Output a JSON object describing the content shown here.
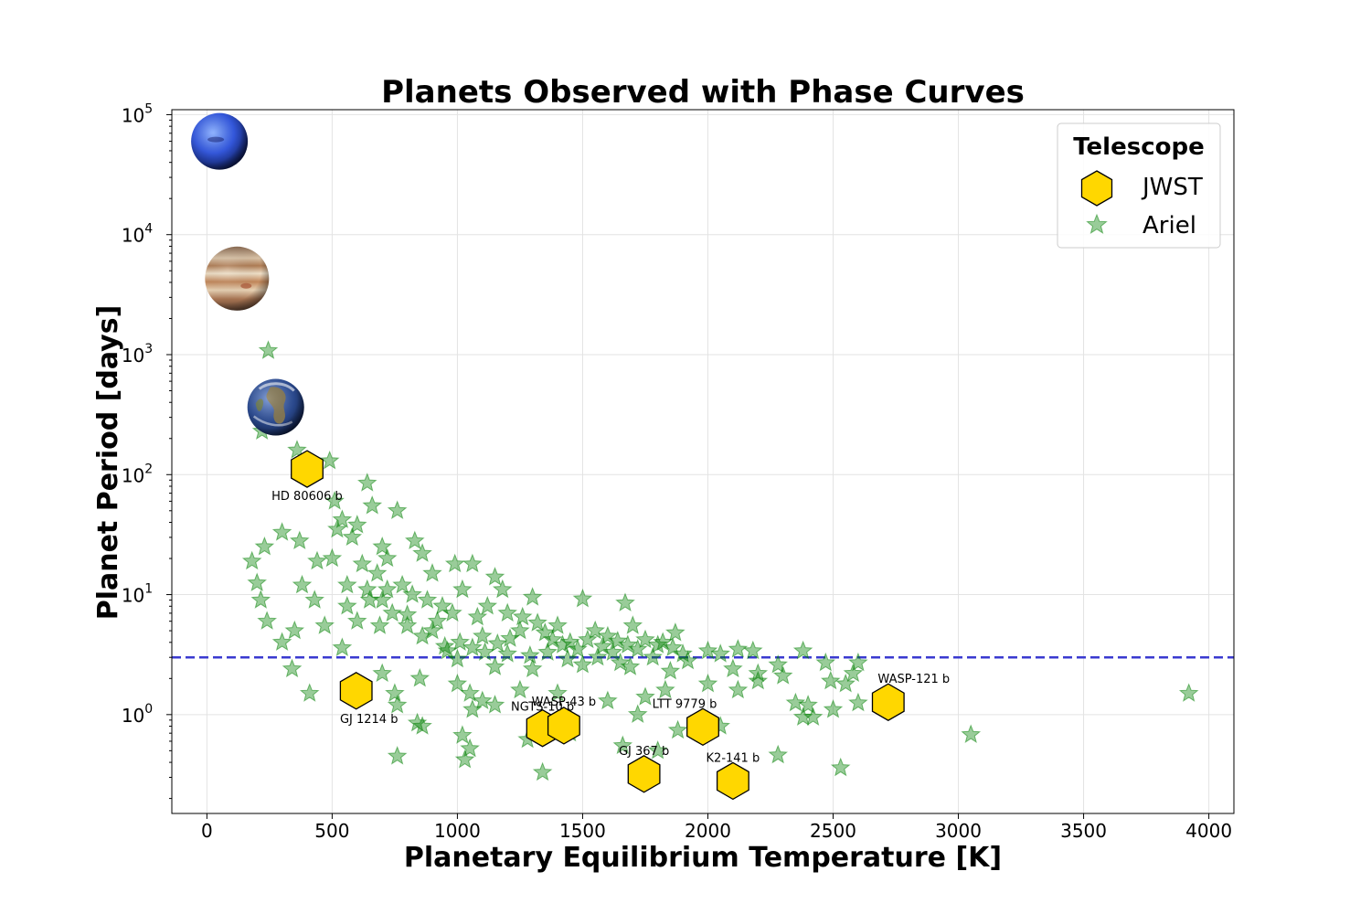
{
  "chart_data": {
    "type": "scatter",
    "title": "Planets Observed with Phase Curves",
    "xlabel": "Planetary Equilibrium Temperature [K]",
    "ylabel": "Planet Period [days]",
    "xlim": [
      -140,
      4100
    ],
    "ylim": [
      0.15,
      110000
    ],
    "yscale": "log",
    "grid": true,
    "x_ticks": [
      0,
      500,
      1000,
      1500,
      2000,
      2500,
      3000,
      3500,
      4000
    ],
    "y_ticks": [
      {
        "value": 1,
        "base": "10",
        "exp": "0"
      },
      {
        "value": 10,
        "base": "10",
        "exp": "1"
      },
      {
        "value": 100,
        "base": "10",
        "exp": "2"
      },
      {
        "value": 1000,
        "base": "10",
        "exp": "3"
      },
      {
        "value": 10000,
        "base": "10",
        "exp": "4"
      },
      {
        "value": 100000,
        "base": "10",
        "exp": "5"
      }
    ],
    "hline": {
      "y": 3.0,
      "color": "#3a3ad0",
      "style": "dashed"
    },
    "legend": {
      "title": "Telescope",
      "position": "top-right"
    },
    "series": [
      {
        "name": "JWST",
        "marker": "hexagon",
        "color": "#FFD700",
        "edge_color": "#000000",
        "points": [
          {
            "label": "HD 80606 b",
            "x": 400,
            "y": 111.4
          },
          {
            "label": "GJ 1214 b",
            "x": 596,
            "y": 1.58
          },
          {
            "label": "NGTS-10 b",
            "x": 1340,
            "y": 0.77
          },
          {
            "label": "WASP-43 b",
            "x": 1425,
            "y": 0.81
          },
          {
            "label": "GJ 367 b",
            "x": 1745,
            "y": 0.32
          },
          {
            "label": "LTT 9779 b",
            "x": 1980,
            "y": 0.79
          },
          {
            "label": "K2-141 b",
            "x": 2100,
            "y": 0.28
          },
          {
            "label": "WASP-121 b",
            "x": 2720,
            "y": 1.27
          }
        ]
      },
      {
        "name": "Ariel",
        "marker": "star",
        "color": "#008000",
        "alpha": 0.4,
        "points": [
          {
            "x": 245,
            "y": 1080
          },
          {
            "x": 220,
            "y": 230
          },
          {
            "x": 360,
            "y": 160
          },
          {
            "x": 490,
            "y": 130
          },
          {
            "x": 640,
            "y": 85
          },
          {
            "x": 510,
            "y": 60
          },
          {
            "x": 660,
            "y": 55
          },
          {
            "x": 760,
            "y": 50
          },
          {
            "x": 540,
            "y": 42
          },
          {
            "x": 600,
            "y": 38
          },
          {
            "x": 300,
            "y": 33
          },
          {
            "x": 370,
            "y": 28
          },
          {
            "x": 700,
            "y": 25
          },
          {
            "x": 830,
            "y": 28
          },
          {
            "x": 860,
            "y": 22
          },
          {
            "x": 230,
            "y": 25
          },
          {
            "x": 180,
            "y": 19
          },
          {
            "x": 440,
            "y": 19
          },
          {
            "x": 990,
            "y": 18
          },
          {
            "x": 1060,
            "y": 18
          },
          {
            "x": 900,
            "y": 15
          },
          {
            "x": 1150,
            "y": 14
          },
          {
            "x": 200,
            "y": 12.5
          },
          {
            "x": 380,
            "y": 12
          },
          {
            "x": 560,
            "y": 12
          },
          {
            "x": 720,
            "y": 11
          },
          {
            "x": 1020,
            "y": 11
          },
          {
            "x": 1180,
            "y": 11
          },
          {
            "x": 215,
            "y": 9
          },
          {
            "x": 430,
            "y": 9
          },
          {
            "x": 650,
            "y": 9
          },
          {
            "x": 1500,
            "y": 9.2
          },
          {
            "x": 1670,
            "y": 8.5
          },
          {
            "x": 1300,
            "y": 9.5
          },
          {
            "x": 240,
            "y": 6
          },
          {
            "x": 350,
            "y": 5
          },
          {
            "x": 300,
            "y": 4
          },
          {
            "x": 540,
            "y": 3.6
          },
          {
            "x": 470,
            "y": 5.5
          },
          {
            "x": 690,
            "y": 5.5
          },
          {
            "x": 800,
            "y": 6.8
          },
          {
            "x": 900,
            "y": 5
          },
          {
            "x": 950,
            "y": 3.7
          },
          {
            "x": 1100,
            "y": 4.5
          },
          {
            "x": 1250,
            "y": 5
          },
          {
            "x": 1350,
            "y": 4.8
          },
          {
            "x": 1400,
            "y": 5.5
          },
          {
            "x": 1450,
            "y": 4
          },
          {
            "x": 1550,
            "y": 5
          },
          {
            "x": 1600,
            "y": 4.5
          },
          {
            "x": 1700,
            "y": 5.5
          },
          {
            "x": 1750,
            "y": 4.2
          },
          {
            "x": 1800,
            "y": 3.8
          },
          {
            "x": 1870,
            "y": 4.8
          },
          {
            "x": 1900,
            "y": 3.2
          },
          {
            "x": 2000,
            "y": 3.4
          },
          {
            "x": 2050,
            "y": 3.2
          },
          {
            "x": 2120,
            "y": 3.5
          },
          {
            "x": 2180,
            "y": 3.4
          },
          {
            "x": 1200,
            "y": 3.2
          },
          {
            "x": 1000,
            "y": 2.9
          },
          {
            "x": 1150,
            "y": 2.5
          },
          {
            "x": 1300,
            "y": 2.4
          },
          {
            "x": 1500,
            "y": 2.6
          },
          {
            "x": 1650,
            "y": 2.7
          },
          {
            "x": 1850,
            "y": 2.3
          },
          {
            "x": 2100,
            "y": 2.4
          },
          {
            "x": 2200,
            "y": 2.2
          },
          {
            "x": 2280,
            "y": 2.6
          },
          {
            "x": 2380,
            "y": 3.4
          },
          {
            "x": 2470,
            "y": 2.7
          },
          {
            "x": 2600,
            "y": 2.7
          },
          {
            "x": 2300,
            "y": 2.1
          },
          {
            "x": 2490,
            "y": 1.9
          },
          {
            "x": 2550,
            "y": 1.8
          },
          {
            "x": 2580,
            "y": 2.2
          },
          {
            "x": 340,
            "y": 2.4
          },
          {
            "x": 410,
            "y": 1.5
          },
          {
            "x": 700,
            "y": 2.2
          },
          {
            "x": 750,
            "y": 1.5
          },
          {
            "x": 850,
            "y": 2
          },
          {
            "x": 1000,
            "y": 1.8
          },
          {
            "x": 1050,
            "y": 1.5
          },
          {
            "x": 1100,
            "y": 1.3
          },
          {
            "x": 1250,
            "y": 1.6
          },
          {
            "x": 1400,
            "y": 1.5
          },
          {
            "x": 1600,
            "y": 1.3
          },
          {
            "x": 1750,
            "y": 1.4
          },
          {
            "x": 1830,
            "y": 1.6
          },
          {
            "x": 2000,
            "y": 1.8
          },
          {
            "x": 2120,
            "y": 1.6
          },
          {
            "x": 2200,
            "y": 1.9
          },
          {
            "x": 760,
            "y": 1.2
          },
          {
            "x": 1060,
            "y": 1.1
          },
          {
            "x": 1150,
            "y": 1.2
          },
          {
            "x": 1720,
            "y": 1.0
          },
          {
            "x": 2350,
            "y": 1.25
          },
          {
            "x": 2400,
            "y": 1.2
          },
          {
            "x": 2420,
            "y": 0.95
          },
          {
            "x": 2500,
            "y": 1.1
          },
          {
            "x": 2600,
            "y": 1.25
          },
          {
            "x": 2380,
            "y": 0.95
          },
          {
            "x": 840,
            "y": 0.85
          },
          {
            "x": 860,
            "y": 0.8
          },
          {
            "x": 1020,
            "y": 0.67
          },
          {
            "x": 1050,
            "y": 0.52
          },
          {
            "x": 1030,
            "y": 0.42
          },
          {
            "x": 760,
            "y": 0.45
          },
          {
            "x": 1280,
            "y": 0.62
          },
          {
            "x": 1340,
            "y": 0.33
          },
          {
            "x": 1450,
            "y": 0.7
          },
          {
            "x": 1660,
            "y": 0.55
          },
          {
            "x": 1800,
            "y": 0.5
          },
          {
            "x": 1880,
            "y": 0.74
          },
          {
            "x": 2050,
            "y": 0.8
          },
          {
            "x": 2280,
            "y": 0.46
          },
          {
            "x": 2530,
            "y": 0.36
          },
          {
            "x": 3050,
            "y": 0.68
          },
          {
            "x": 3920,
            "y": 1.5
          },
          {
            "x": 500,
            "y": 20
          },
          {
            "x": 520,
            "y": 35
          },
          {
            "x": 580,
            "y": 30
          },
          {
            "x": 620,
            "y": 18
          },
          {
            "x": 680,
            "y": 15
          },
          {
            "x": 720,
            "y": 20
          },
          {
            "x": 780,
            "y": 12
          },
          {
            "x": 820,
            "y": 10
          },
          {
            "x": 880,
            "y": 9
          },
          {
            "x": 940,
            "y": 8
          },
          {
            "x": 980,
            "y": 7
          },
          {
            "x": 1080,
            "y": 6.5
          },
          {
            "x": 1120,
            "y": 8
          },
          {
            "x": 1200,
            "y": 7
          },
          {
            "x": 1260,
            "y": 6.5
          },
          {
            "x": 1320,
            "y": 5.8
          },
          {
            "x": 1380,
            "y": 4.2
          },
          {
            "x": 1420,
            "y": 3.8
          },
          {
            "x": 1480,
            "y": 3.5
          },
          {
            "x": 1520,
            "y": 4.2
          },
          {
            "x": 1580,
            "y": 3.7
          },
          {
            "x": 1620,
            "y": 3.3
          },
          {
            "x": 1680,
            "y": 3.8
          },
          {
            "x": 1720,
            "y": 3.5
          },
          {
            "x": 1780,
            "y": 3.0
          },
          {
            "x": 1820,
            "y": 4.0
          },
          {
            "x": 1860,
            "y": 3.6
          },
          {
            "x": 1920,
            "y": 2.8
          },
          {
            "x": 960,
            "y": 3.4
          },
          {
            "x": 1010,
            "y": 4.0
          },
          {
            "x": 1060,
            "y": 3.6
          },
          {
            "x": 1110,
            "y": 3.3
          },
          {
            "x": 1160,
            "y": 3.9
          },
          {
            "x": 1210,
            "y": 4.3
          },
          {
            "x": 1290,
            "y": 3.1
          },
          {
            "x": 1360,
            "y": 3.3
          },
          {
            "x": 1440,
            "y": 2.9
          },
          {
            "x": 1560,
            "y": 3.0
          },
          {
            "x": 1640,
            "y": 4.1
          },
          {
            "x": 1690,
            "y": 2.5
          },
          {
            "x": 560,
            "y": 8
          },
          {
            "x": 600,
            "y": 6
          },
          {
            "x": 640,
            "y": 11
          },
          {
            "x": 700,
            "y": 9
          },
          {
            "x": 740,
            "y": 7
          },
          {
            "x": 800,
            "y": 5.5
          },
          {
            "x": 860,
            "y": 4.5
          },
          {
            "x": 920,
            "y": 6
          }
        ]
      }
    ],
    "images": [
      {
        "name": "neptune",
        "x": 50,
        "y": 60000
      },
      {
        "name": "jupiter",
        "x": 120,
        "y": 4300
      },
      {
        "name": "earth",
        "x": 275,
        "y": 365
      }
    ]
  }
}
